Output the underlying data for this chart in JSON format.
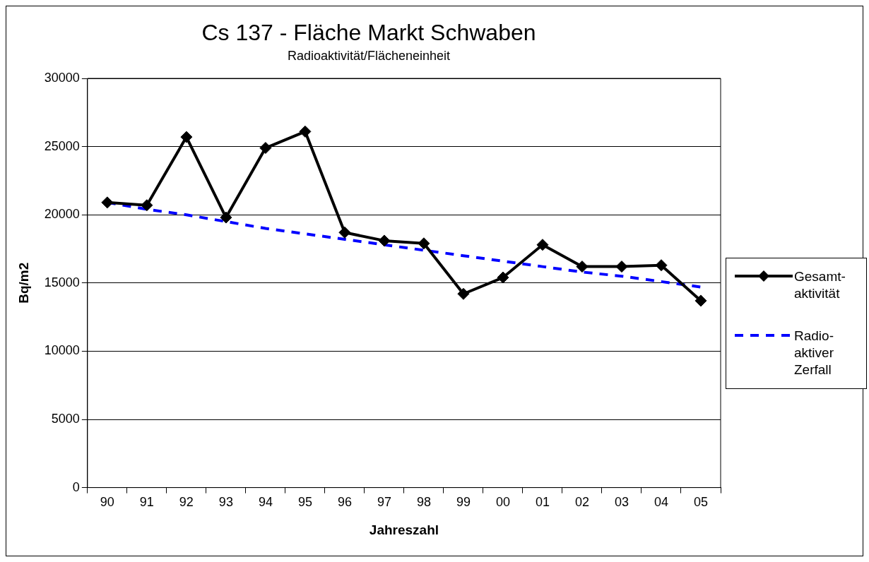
{
  "chart_data": {
    "type": "line",
    "title": "Cs 137 - Fläche Markt Schwaben",
    "subtitle": "Radioaktivität/Flächeneinheit",
    "xlabel": "Jahreszahl",
    "ylabel": "Bq/m2",
    "categories": [
      "90",
      "91",
      "92",
      "93",
      "94",
      "95",
      "96",
      "97",
      "98",
      "99",
      "00",
      "01",
      "02",
      "03",
      "04",
      "05"
    ],
    "series": [
      {
        "name": "Gesamt-aktivität",
        "color": "#000000",
        "marker": "diamond",
        "line_style": "solid",
        "values": [
          20900,
          20700,
          25700,
          19800,
          24900,
          26100,
          18700,
          18100,
          17900,
          14200,
          15400,
          17800,
          16200,
          16200,
          16300,
          13700
        ]
      },
      {
        "name": "Radio-aktiver Zerfall",
        "color": "#0000ff",
        "marker": "none",
        "line_style": "dashed",
        "values": [
          20900,
          20400,
          20000,
          19500,
          19000,
          18600,
          18200,
          17800,
          17400,
          17000,
          16600,
          16200,
          15800,
          15500,
          15100,
          14700
        ]
      }
    ],
    "ylim": [
      0,
      30000
    ],
    "yticks": [
      0,
      5000,
      10000,
      15000,
      20000,
      25000,
      30000
    ],
    "grid": "y",
    "legend": "right"
  }
}
